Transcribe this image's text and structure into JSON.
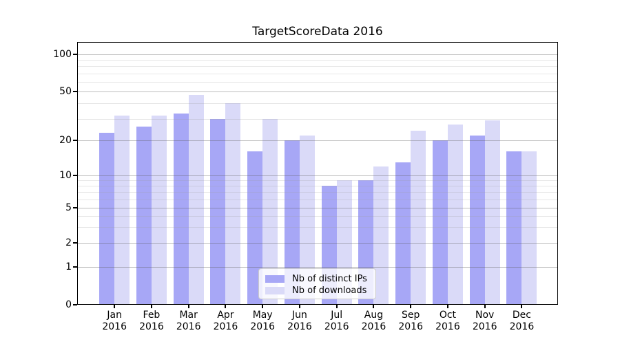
{
  "title": "TargetScoreData 2016",
  "legend": {
    "items": [
      {
        "label": "Nb of distinct IPs",
        "color": "#a7a7f6"
      },
      {
        "label": "Nb of downloads",
        "color": "#dadaf8"
      }
    ]
  },
  "y_axis": {
    "tick_labels": [
      "0",
      "1",
      "2",
      "5",
      "10",
      "20",
      "50",
      "100"
    ],
    "tick_values": [
      0,
      1,
      2,
      5,
      10,
      20,
      50,
      100
    ],
    "minor_tick_values": [
      3,
      4,
      6,
      7,
      8,
      9,
      30,
      40,
      60,
      70,
      80,
      90
    ]
  },
  "x_axis": {
    "months": [
      "Jan",
      "Feb",
      "Mar",
      "Apr",
      "May",
      "Jun",
      "Jul",
      "Aug",
      "Sep",
      "Oct",
      "Nov",
      "Dec"
    ],
    "year": "2016"
  },
  "chart_data": {
    "type": "bar",
    "title": "TargetScoreData 2016",
    "categories": [
      "Jan 2016",
      "Feb 2016",
      "Mar 2016",
      "Apr 2016",
      "May 2016",
      "Jun 2016",
      "Jul 2016",
      "Aug 2016",
      "Sep 2016",
      "Oct 2016",
      "Nov 2016",
      "Dec 2016"
    ],
    "series": [
      {
        "name": "Nb of distinct IPs",
        "color": "#a7a7f6",
        "values": [
          23,
          26,
          33,
          30,
          16,
          20,
          8,
          9,
          13,
          20,
          22,
          16
        ]
      },
      {
        "name": "Nb of downloads",
        "color": "#dadaf8",
        "values": [
          32,
          32,
          47,
          40,
          30,
          22,
          9,
          12,
          24,
          27,
          29,
          16
        ]
      }
    ],
    "xlabel": "",
    "ylabel": "",
    "yscale": "log-like with zero baseline",
    "yticks": [
      0,
      1,
      2,
      5,
      10,
      20,
      50,
      100
    ],
    "ylim": [
      0,
      140
    ],
    "grid": true,
    "legend_position": "bottom-center"
  }
}
